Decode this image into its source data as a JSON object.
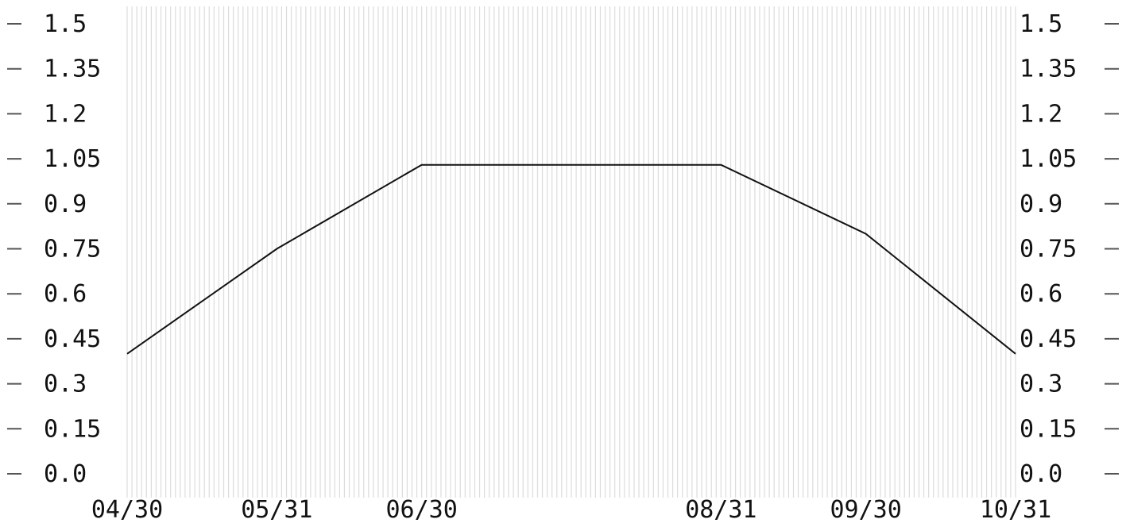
{
  "chart_data": {
    "type": "line",
    "title": "",
    "xlabel": "",
    "ylabel": "",
    "x_tick_labels": [
      "04/30",
      "05/31",
      "06/30",
      "08/31",
      "09/30",
      "10/31"
    ],
    "y_tick_labels": [
      "1.5",
      "1.35",
      "1.2",
      "1.05",
      "0.9",
      "0.75",
      "0.6",
      "0.45",
      "0.3",
      "0.15",
      "0.0"
    ],
    "ylim": [
      0.0,
      1.5
    ],
    "xlim": [
      "04/30",
      "10/31"
    ],
    "grid": "vertical",
    "secondary_y_axis": "right",
    "series": [
      {
        "x": [
          "04/30",
          "05/31",
          "06/30",
          "08/31",
          "09/30",
          "10/31"
        ],
        "values": [
          0.4,
          0.75,
          1.03,
          1.03,
          0.8,
          0.4
        ]
      }
    ],
    "colors": {
      "line": "#111111",
      "grid": "#dcdcdc",
      "background": "#ffffff"
    }
  }
}
